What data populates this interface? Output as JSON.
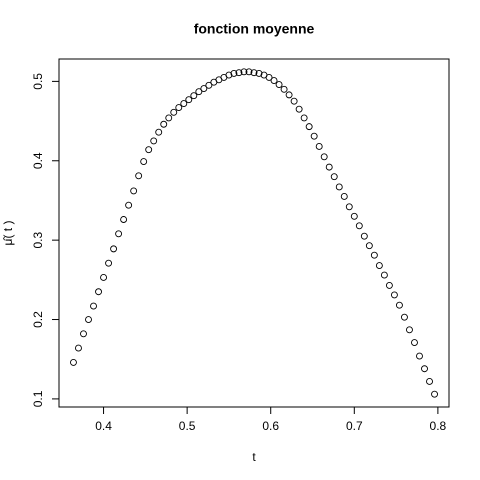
{
  "chart_data": {
    "type": "scatter",
    "title": "fonction moyenne",
    "x_label": "t",
    "y_label": "μ̂( t )",
    "x": [
      0.364,
      0.37,
      0.376,
      0.382,
      0.388,
      0.394,
      0.4,
      0.406,
      0.412,
      0.418,
      0.424,
      0.43,
      0.436,
      0.442,
      0.448,
      0.454,
      0.46,
      0.466,
      0.472,
      0.478,
      0.484,
      0.49,
      0.496,
      0.502,
      0.508,
      0.514,
      0.52,
      0.526,
      0.532,
      0.538,
      0.544,
      0.55,
      0.556,
      0.562,
      0.568,
      0.574,
      0.58,
      0.586,
      0.592,
      0.598,
      0.604,
      0.61,
      0.616,
      0.622,
      0.628,
      0.634,
      0.64,
      0.646,
      0.652,
      0.658,
      0.664,
      0.67,
      0.676,
      0.682,
      0.688,
      0.694,
      0.7,
      0.706,
      0.712,
      0.718,
      0.724,
      0.73,
      0.736,
      0.742,
      0.748,
      0.754,
      0.76,
      0.766,
      0.772,
      0.778,
      0.784,
      0.79,
      0.796
    ],
    "values": [
      0.146,
      0.164,
      0.182,
      0.2,
      0.217,
      0.235,
      0.253,
      0.271,
      0.289,
      0.308,
      0.326,
      0.344,
      0.362,
      0.381,
      0.399,
      0.414,
      0.425,
      0.436,
      0.446,
      0.454,
      0.461,
      0.467,
      0.472,
      0.477,
      0.482,
      0.487,
      0.491,
      0.495,
      0.499,
      0.502,
      0.505,
      0.508,
      0.51,
      0.511,
      0.512,
      0.512,
      0.511,
      0.51,
      0.508,
      0.505,
      0.501,
      0.496,
      0.49,
      0.483,
      0.475,
      0.465,
      0.454,
      0.443,
      0.431,
      0.418,
      0.405,
      0.392,
      0.38,
      0.367,
      0.355,
      0.342,
      0.33,
      0.318,
      0.305,
      0.293,
      0.281,
      0.268,
      0.256,
      0.243,
      0.231,
      0.218,
      0.203,
      0.187,
      0.171,
      0.154,
      0.138,
      0.122,
      0.106
    ],
    "color": "#000000",
    "xlim": [
      0.3467,
      0.8133
    ],
    "xticks": [
      0.4,
      0.5,
      0.6,
      0.7,
      0.8
    ],
    "ylim": [
      0.0898,
      0.5282
    ],
    "yticks": [
      0.1,
      0.2,
      0.3,
      0.4,
      0.5
    ]
  }
}
